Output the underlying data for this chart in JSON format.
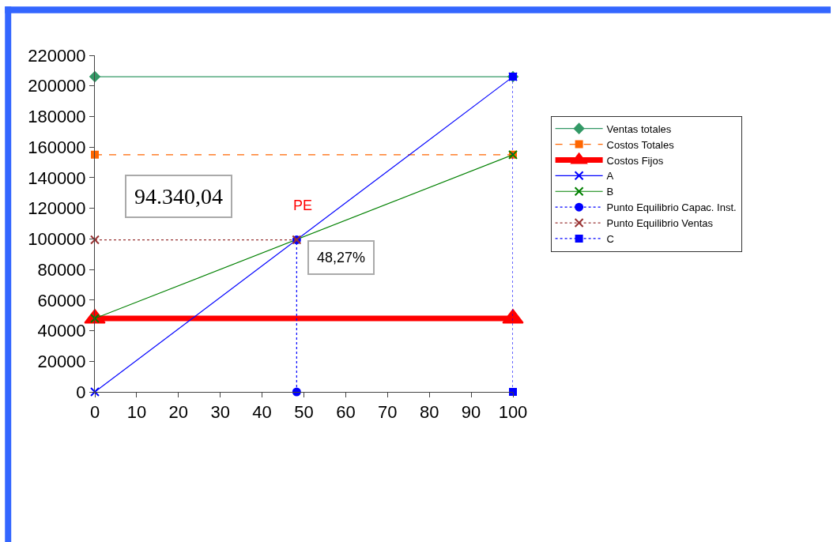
{
  "chart_data": {
    "type": "line",
    "xlim": [
      0,
      100
    ],
    "xticks": [
      0,
      10,
      20,
      30,
      40,
      50,
      60,
      70,
      80,
      90,
      100
    ],
    "ylim": [
      0,
      220000
    ],
    "yticks": [
      0,
      20000,
      40000,
      60000,
      80000,
      100000,
      120000,
      140000,
      160000,
      180000,
      200000,
      220000
    ],
    "legend": "right",
    "annotations": [
      "94.340,04",
      {
        "text": "PE",
        "x": 48.27,
        "y": 99400
      },
      {
        "text": "48,27%",
        "x": 48.27,
        "y": 99400
      }
    ],
    "series": [
      {
        "name": "Ventas totales",
        "color": "#339966",
        "marker": "diamond",
        "line_style": "solid",
        "x": [
          0,
          100
        ],
        "values": [
          206000,
          206000
        ]
      },
      {
        "name": "Costos Totales",
        "color": "#ff6600",
        "marker": "square",
        "line_style": "dashed",
        "x": [
          0,
          100
        ],
        "values": [
          155000,
          155000
        ]
      },
      {
        "name": "Costos Fijos",
        "color": "#ff0000",
        "marker": "triangle",
        "line_style": "solid",
        "x": [
          0,
          100
        ],
        "values": [
          48000,
          48000
        ]
      },
      {
        "name": "A",
        "color": "#0000ff",
        "marker": "cross",
        "line_style": "solid",
        "x": [
          0,
          100
        ],
        "values": [
          0,
          206000
        ]
      },
      {
        "name": "B",
        "color": "#008000",
        "marker": "cross",
        "line_style": "solid",
        "x": [
          0,
          100
        ],
        "values": [
          48000,
          155000
        ]
      },
      {
        "name": "Punto Equilibrio Capac. Inst.",
        "color": "#0000ff",
        "marker": "circle",
        "line_style": "dotted",
        "x": [
          48.27,
          48.27
        ],
        "values": [
          0,
          99400
        ]
      },
      {
        "name": "Punto Equilibrio Ventas",
        "color": "#993333",
        "marker": "cross",
        "line_style": "dotted",
        "x": [
          0,
          48.27
        ],
        "values": [
          99400,
          99400
        ]
      },
      {
        "name": "C",
        "color": "#0000ff",
        "marker": "square",
        "line_style": "dotted",
        "x": [
          100,
          100
        ],
        "values": [
          0,
          206000
        ]
      }
    ]
  }
}
